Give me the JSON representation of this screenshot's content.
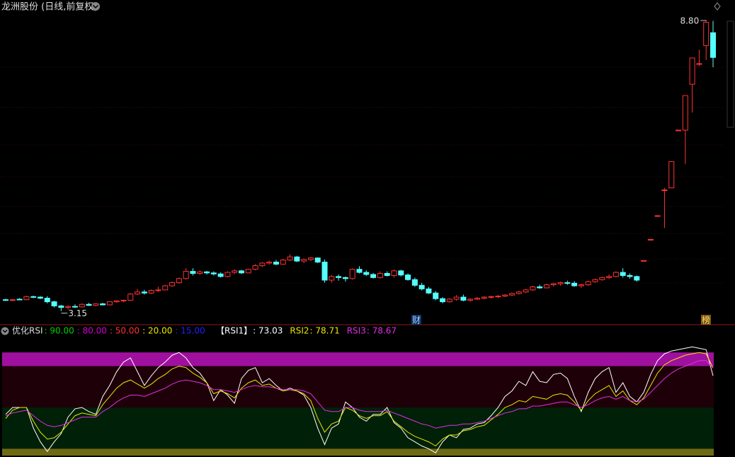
{
  "chart_data": [
    {
      "type": "candlestick",
      "title": "龙洲股份 (日线,前复权)",
      "open": [
        3.37,
        3.36,
        3.38,
        3.37,
        3.43,
        3.42,
        3.4,
        3.33,
        3.25,
        3.22,
        3.24,
        3.23,
        3.28,
        3.26,
        3.29,
        3.27,
        3.33,
        3.35,
        3.36,
        3.48,
        3.52,
        3.5,
        3.55,
        3.56,
        3.64,
        3.7,
        3.78,
        3.92,
        3.88,
        3.91,
        3.89,
        3.87,
        3.82,
        3.9,
        3.93,
        3.89,
        3.96,
        4.03,
        4.08,
        4.1,
        4.06,
        4.14,
        4.2,
        4.12,
        4.15,
        4.18,
        4.1,
        3.75,
        3.82,
        3.8,
        3.78,
        3.96,
        3.9,
        3.86,
        3.8,
        3.88,
        3.84,
        3.93,
        3.85,
        3.76,
        3.65,
        3.58,
        3.5,
        3.39,
        3.33,
        3.38,
        3.42,
        3.36,
        3.38,
        3.4,
        3.42,
        3.43,
        3.44,
        3.46,
        3.49,
        3.52,
        3.56,
        3.62,
        3.6,
        3.66,
        3.68,
        3.7,
        3.69,
        3.64,
        3.66,
        3.72,
        3.76,
        3.8,
        3.82,
        3.9,
        3.84,
        3.82,
        4.13,
        4.54,
        5.0,
        5.5,
        5.54,
        6.66,
        6.66,
        7.55,
        7.95,
        8.3,
        8.55
      ],
      "high": [
        3.39,
        3.38,
        3.4,
        3.45,
        3.45,
        3.44,
        3.44,
        3.35,
        3.27,
        3.26,
        3.28,
        3.3,
        3.31,
        3.3,
        3.31,
        3.34,
        3.36,
        3.37,
        3.5,
        3.58,
        3.56,
        3.57,
        3.62,
        3.66,
        3.72,
        3.8,
        3.98,
        3.98,
        3.94,
        3.93,
        3.92,
        3.9,
        3.92,
        3.96,
        3.95,
        3.97,
        4.06,
        4.1,
        4.13,
        4.14,
        4.16,
        4.25,
        4.22,
        4.17,
        4.2,
        4.19,
        4.15,
        3.85,
        3.86,
        3.82,
        3.98,
        4.02,
        3.94,
        3.89,
        3.92,
        3.92,
        3.96,
        3.95,
        3.88,
        3.8,
        3.7,
        3.62,
        3.54,
        3.42,
        3.4,
        3.46,
        3.47,
        3.4,
        3.42,
        3.44,
        3.45,
        3.46,
        3.48,
        3.51,
        3.54,
        3.58,
        3.64,
        3.66,
        3.68,
        3.7,
        3.72,
        3.74,
        3.73,
        3.68,
        3.74,
        3.78,
        3.82,
        3.86,
        3.92,
        3.98,
        3.88,
        3.84,
        4.13,
        4.54,
        5.0,
        5.54,
        6.05,
        6.66,
        7.33,
        8.06,
        8.22,
        8.8,
        8.78
      ],
      "low": [
        3.35,
        3.34,
        3.36,
        3.36,
        3.4,
        3.38,
        3.3,
        3.22,
        3.15,
        3.18,
        3.21,
        3.22,
        3.25,
        3.24,
        3.26,
        3.26,
        3.31,
        3.32,
        3.35,
        3.46,
        3.47,
        3.48,
        3.52,
        3.55,
        3.62,
        3.68,
        3.76,
        3.84,
        3.85,
        3.86,
        3.84,
        3.8,
        3.8,
        3.87,
        3.87,
        3.88,
        3.94,
        4.0,
        4.05,
        4.04,
        4.05,
        4.12,
        4.1,
        4.08,
        4.12,
        4.08,
        3.7,
        3.7,
        3.74,
        3.72,
        3.76,
        3.88,
        3.83,
        3.78,
        3.78,
        3.82,
        3.8,
        3.82,
        3.74,
        3.62,
        3.55,
        3.48,
        3.36,
        3.3,
        3.31,
        3.35,
        3.34,
        3.33,
        3.36,
        3.38,
        3.39,
        3.4,
        3.42,
        3.44,
        3.47,
        3.5,
        3.54,
        3.58,
        3.59,
        3.63,
        3.64,
        3.66,
        3.62,
        3.6,
        3.64,
        3.7,
        3.74,
        3.77,
        3.8,
        3.8,
        3.78,
        3.72,
        4.13,
        4.54,
        5.0,
        4.76,
        5.54,
        6.66,
        6.0,
        7.0,
        7.9,
        8.02,
        7.88
      ],
      "close": [
        3.36,
        3.37,
        3.37,
        3.43,
        3.42,
        3.4,
        3.33,
        3.25,
        3.22,
        3.24,
        3.23,
        3.28,
        3.26,
        3.29,
        3.27,
        3.33,
        3.35,
        3.36,
        3.48,
        3.52,
        3.5,
        3.55,
        3.56,
        3.64,
        3.7,
        3.78,
        3.92,
        3.88,
        3.91,
        3.89,
        3.87,
        3.82,
        3.9,
        3.93,
        3.89,
        3.96,
        4.03,
        4.08,
        4.1,
        4.06,
        4.14,
        4.2,
        4.12,
        4.15,
        4.18,
        4.1,
        3.75,
        3.82,
        3.8,
        3.78,
        3.96,
        3.9,
        3.86,
        3.8,
        3.88,
        3.84,
        3.93,
        3.85,
        3.76,
        3.65,
        3.58,
        3.5,
        3.39,
        3.33,
        3.38,
        3.42,
        3.36,
        3.38,
        3.4,
        3.42,
        3.43,
        3.44,
        3.46,
        3.49,
        3.52,
        3.56,
        3.62,
        3.6,
        3.66,
        3.68,
        3.7,
        3.69,
        3.64,
        3.66,
        3.72,
        3.76,
        3.8,
        3.82,
        3.9,
        3.84,
        3.82,
        3.75,
        4.13,
        4.54,
        5.0,
        5.5,
        6.05,
        6.66,
        7.33,
        8.06,
        7.95,
        8.75,
        8.07
      ],
      "ylim": [
        2.94,
        8.91
      ],
      "up_color": "#ff3232",
      "down_color": "#54ffff",
      "max_label": "8.80",
      "min_label": "3.15",
      "markers": [
        "财",
        "榜"
      ]
    },
    {
      "type": "line",
      "title": "优化RSI",
      "levels": [
        90,
        80,
        50,
        20,
        15
      ],
      "level_labels": [
        ": 90.00",
        ": 80.00",
        ": 50.00",
        ": 20.00",
        ": 15.00"
      ],
      "level_label_colors": [
        "#00d000",
        "#d000d0",
        "#ff3232",
        "#e8e800",
        "#2020ff"
      ],
      "band_colors": [
        "#a0109f",
        "#1e0008",
        "#002008",
        "#6e6a14"
      ],
      "ylim": [
        14,
        105
      ],
      "series": [
        {
          "name": "【RSI1】",
          "value_label": ": 73.03",
          "color": "#ffffff",
          "values": [
            45,
            50,
            50,
            50,
            35,
            25,
            18,
            25,
            31,
            43,
            49,
            50,
            47,
            45,
            58,
            66,
            76,
            83,
            86,
            76,
            66,
            73,
            79,
            83,
            88,
            90,
            86,
            79,
            75,
            68,
            55,
            63,
            59,
            53,
            71,
            77,
            79,
            68,
            71,
            66,
            62,
            64,
            62,
            59,
            50,
            35,
            23,
            35,
            38,
            54,
            50,
            43,
            40,
            45,
            45,
            50,
            39,
            35,
            28,
            25,
            22,
            20,
            17,
            25,
            30,
            28,
            34,
            35,
            38,
            39,
            44,
            50,
            58,
            62,
            69,
            66,
            76,
            69,
            68,
            74,
            75,
            71,
            58,
            47,
            61,
            71,
            76,
            79,
            61,
            68,
            58,
            54,
            61,
            74,
            84,
            89,
            91,
            92,
            93,
            94,
            93,
            92,
            73.03
          ]
        },
        {
          "name": "RSI2",
          "value_label": ": 78.71",
          "color": "#e8e800",
          "values": [
            42,
            48,
            50,
            50,
            40,
            32,
            27,
            28,
            32,
            38,
            44,
            46,
            45,
            44,
            52,
            58,
            64,
            68,
            70,
            67,
            64,
            67,
            71,
            74,
            78,
            80,
            79,
            75,
            72,
            68,
            60,
            62,
            60,
            57,
            64,
            68,
            70,
            66,
            67,
            64,
            62,
            63,
            62,
            60,
            55,
            42,
            32,
            38,
            40,
            50,
            48,
            44,
            42,
            44,
            44,
            47,
            40,
            36,
            32,
            29,
            27,
            25,
            22,
            27,
            30,
            30,
            33,
            34,
            36,
            37,
            41,
            45,
            50,
            52,
            55,
            54,
            58,
            57,
            56,
            59,
            60,
            59,
            54,
            48,
            55,
            60,
            63,
            66,
            58,
            62,
            55,
            52,
            57,
            66,
            75,
            81,
            84,
            86,
            88,
            89,
            90,
            89,
            78.71
          ]
        },
        {
          "name": "RSI3",
          "value_label": ": 78.67",
          "color": "#e030e0",
          "values": [
            44,
            46,
            47,
            48,
            44,
            40,
            37,
            36,
            37,
            39,
            41,
            43,
            43,
            43,
            47,
            50,
            54,
            57,
            59,
            59,
            58,
            60,
            62,
            64,
            67,
            69,
            70,
            69,
            68,
            66,
            63,
            63,
            62,
            61,
            63,
            65,
            66,
            65,
            65,
            64,
            63,
            63,
            63,
            62,
            60,
            54,
            48,
            47,
            47,
            50,
            50,
            48,
            47,
            47,
            47,
            48,
            46,
            44,
            42,
            40,
            38,
            37,
            35,
            36,
            37,
            37,
            38,
            38,
            39,
            40,
            42,
            44,
            46,
            47,
            49,
            49,
            51,
            51,
            52,
            53,
            54,
            54,
            52,
            50,
            52,
            55,
            57,
            58,
            56,
            58,
            55,
            54,
            56,
            61,
            66,
            71,
            75,
            78,
            80,
            82,
            84,
            84,
            78.67
          ]
        }
      ]
    }
  ]
}
